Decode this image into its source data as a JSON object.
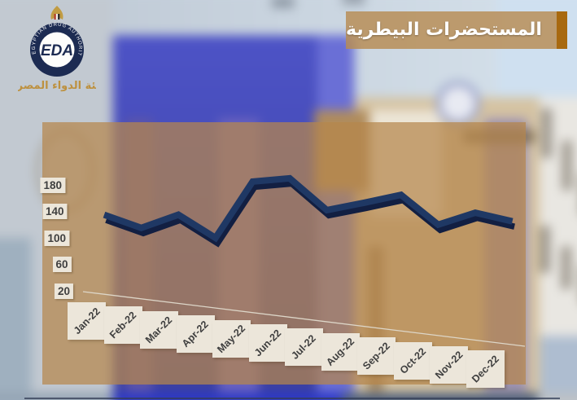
{
  "header": {
    "title": "المستحضرات البيطرية",
    "logo": {
      "acronym": "EDA",
      "ring_text": "EGYPTIAN DRUG AUTHORITY",
      "arabic_name": "هيئة الدواء المصرية"
    }
  },
  "colors": {
    "line": "#1f3864",
    "line_shadow": "#121f42",
    "panel": "rgba(181,134,76,0.72)",
    "banner": "rgba(183,139,82,0.82)",
    "banner_bar": "#a8690f",
    "label_box": "#ece6da",
    "label_text": "#3f3f3f"
  },
  "chart_data": {
    "type": "line",
    "style": "3d-ribbon",
    "title": "المستحضرات البيطرية",
    "categories": [
      "Jan-22",
      "Feb-22",
      "Mar-22",
      "Apr-22",
      "May-22",
      "Jun-22",
      "Jul-22",
      "Aug-22",
      "Sep-22",
      "Oct-22",
      "Nov-22",
      "Dec-22"
    ],
    "series": [
      {
        "name": "المستحضرات البيطرية",
        "values": [
          135,
          115,
          135,
          100,
          185,
          190,
          142,
          153,
          165,
          120,
          138,
          125
        ]
      }
    ],
    "yticks": [
      20,
      60,
      100,
      140,
      180
    ],
    "ylim": [
      20,
      200
    ],
    "xlabel": "",
    "ylabel": "",
    "grid": false,
    "legend": false
  }
}
